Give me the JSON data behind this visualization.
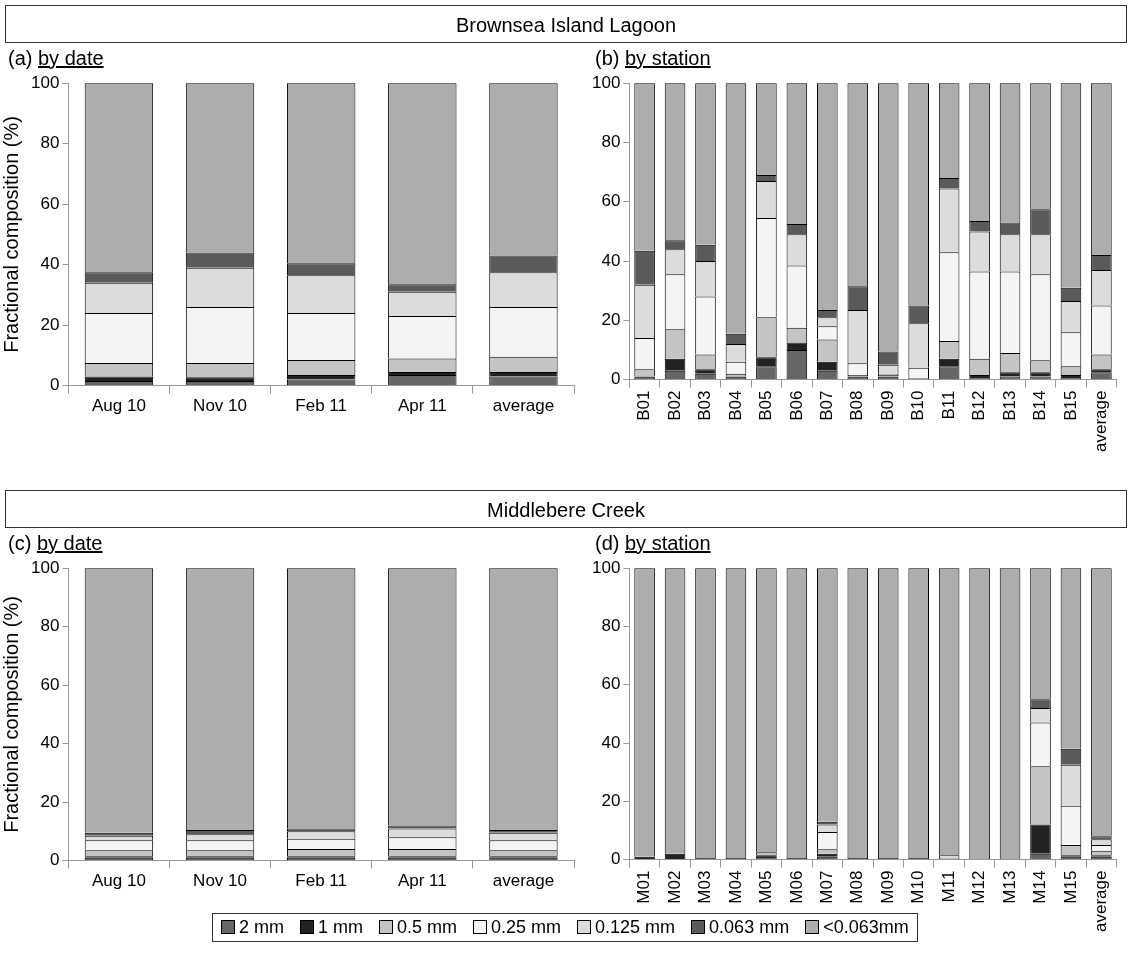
{
  "chart_data": [
    {
      "type": "bar",
      "stacked": true,
      "title": "Brownsea Island Lagoon",
      "subtitle": "(a) by date",
      "ylabel": "Fractional composition (%)",
      "categories": [
        "Aug 10",
        "Nov 10",
        "Feb 11",
        "Apr 11",
        "average"
      ],
      "ylim": [
        0,
        100
      ],
      "yticks": [
        0,
        20,
        40,
        60,
        80,
        100
      ],
      "series": [
        {
          "color": "#666666",
          "values": [
            1.5,
            1.5,
            2,
            3.5,
            3
          ]
        },
        {
          "color": "#222222",
          "values": [
            1.5,
            1.3,
            1.5,
            1,
            1.5
          ]
        },
        {
          "color": "#c4c4c4",
          "values": [
            4.5,
            4.7,
            5,
            4.5,
            5
          ]
        },
        {
          "color": "#f4f4f4",
          "values": [
            16.5,
            18.5,
            15.5,
            14,
            16.5
          ]
        },
        {
          "color": "#dcdcdc",
          "values": [
            10,
            13,
            12.5,
            8,
            11.5
          ]
        },
        {
          "color": "#5a5a5a",
          "values": [
            3.5,
            5,
            4,
            2.5,
            5.5
          ]
        },
        {
          "color": "#adadad",
          "values": [
            62.5,
            56,
            59.5,
            66.5,
            57
          ]
        }
      ]
    },
    {
      "type": "bar",
      "stacked": true,
      "subtitle": "(b) by station",
      "categories": [
        "B01",
        "B02",
        "B03",
        "B04",
        "B05",
        "B06",
        "B07",
        "B08",
        "B09",
        "B10",
        "B11",
        "B12",
        "B13",
        "B14",
        "B15",
        "average"
      ],
      "ylim": [
        0,
        100
      ],
      "yticks": [
        0,
        20,
        40,
        60,
        80,
        100
      ],
      "series": [
        {
          "color": "#666666",
          "values": [
            0.5,
            3,
            2,
            0.5,
            4.5,
            10,
            3,
            0.5,
            0.5,
            0,
            4.5,
            0.5,
            1,
            1,
            0.5,
            2.5
          ]
        },
        {
          "color": "#222222",
          "values": [
            0.5,
            4,
            1.5,
            0.5,
            3,
            2.5,
            3,
            0.5,
            0.5,
            0,
            2.5,
            1,
            1.5,
            1.5,
            1,
            1
          ]
        },
        {
          "color": "#c4c4c4",
          "values": [
            2.5,
            10,
            5,
            1,
            13.5,
            5,
            7.5,
            0.5,
            0.5,
            0.5,
            6,
            5.5,
            6.5,
            4,
            3,
            5
          ]
        },
        {
          "color": "#f4f4f4",
          "values": [
            10.5,
            18.5,
            19.5,
            4,
            33.5,
            21,
            4.5,
            4,
            0.5,
            3.5,
            30,
            29.5,
            27.5,
            29,
            11.5,
            16.5
          ]
        },
        {
          "color": "#dcdcdc",
          "values": [
            18,
            8.5,
            12,
            6,
            12.5,
            10.5,
            3,
            18,
            3,
            15,
            21.5,
            13.5,
            12.5,
            13.5,
            10.5,
            12
          ]
        },
        {
          "color": "#5a5a5a",
          "values": [
            11.5,
            3,
            5.5,
            3.5,
            2,
            3.5,
            2.5,
            8,
            4.5,
            6,
            3.5,
            3.5,
            4,
            8.5,
            4.5,
            5
          ]
        },
        {
          "color": "#adadad",
          "values": [
            56.5,
            53,
            54.5,
            84.5,
            31,
            47.5,
            76.5,
            68.5,
            90.5,
            75,
            32,
            46.5,
            47,
            42.5,
            69,
            58
          ]
        }
      ]
    },
    {
      "type": "bar",
      "stacked": true,
      "title": "Middlebere Creek",
      "subtitle": "(c) by date",
      "ylabel": "Fractional composition (%)",
      "categories": [
        "Aug 10",
        "Nov 10",
        "Feb 11",
        "Apr 11",
        "average"
      ],
      "ylim": [
        0,
        100
      ],
      "yticks": [
        0,
        20,
        40,
        60,
        80,
        100
      ],
      "series": [
        {
          "color": "#666666",
          "values": [
            1,
            1,
            1,
            1,
            1
          ]
        },
        {
          "color": "#222222",
          "values": [
            0.5,
            0.5,
            0.5,
            0.5,
            0.5
          ]
        },
        {
          "color": "#c4c4c4",
          "values": [
            2,
            2,
            2.5,
            2.5,
            2
          ]
        },
        {
          "color": "#f4f4f4",
          "values": [
            3.5,
            3.5,
            3.5,
            4,
            3.5
          ]
        },
        {
          "color": "#dcdcdc",
          "values": [
            1.5,
            2,
            2.5,
            3,
            2.5
          ]
        },
        {
          "color": "#5a5a5a",
          "values": [
            1,
            1.5,
            1,
            1,
            1
          ]
        },
        {
          "color": "#adadad",
          "values": [
            90.5,
            89.5,
            89,
            88,
            89.5
          ]
        }
      ]
    },
    {
      "type": "bar",
      "stacked": true,
      "subtitle": "(d) by station",
      "categories": [
        "M01",
        "M02",
        "M03",
        "M04",
        "M05",
        "M06",
        "M07",
        "M08",
        "M09",
        "M10",
        "M11",
        "M12",
        "M13",
        "M14",
        "M15",
        "average"
      ],
      "ylim": [
        0,
        100
      ],
      "yticks": [
        0,
        20,
        40,
        60,
        80,
        100
      ],
      "legend": "bottom",
      "series": [
        {
          "name": "2 mm",
          "color": "#666666",
          "values": [
            0,
            0,
            0,
            0,
            0.5,
            0,
            1,
            0,
            0,
            0,
            0,
            0,
            0,
            2,
            1,
            1
          ]
        },
        {
          "name": "1 mm",
          "color": "#222222",
          "values": [
            1,
            2,
            0.5,
            0.5,
            1,
            0.5,
            1,
            0.5,
            0.5,
            0.5,
            0,
            0,
            0,
            10,
            0.5,
            0.5
          ]
        },
        {
          "name": "0.5 mm",
          "color": "#c4c4c4",
          "values": [
            0,
            0,
            0,
            0,
            1,
            0,
            1.5,
            0,
            0,
            0,
            0,
            0,
            0,
            20,
            3.5,
            1.5
          ]
        },
        {
          "name": "0.25 mm",
          "color": "#f4f4f4",
          "values": [
            0,
            0,
            0,
            0,
            0,
            0,
            6,
            0,
            0,
            0,
            0.5,
            0,
            0,
            15,
            13.5,
            2
          ]
        },
        {
          "name": "0.125 mm",
          "color": "#dcdcdc",
          "values": [
            0,
            0,
            0,
            0,
            0,
            0,
            2.5,
            0,
            0,
            0,
            1,
            0,
            0,
            5,
            14,
            2
          ]
        },
        {
          "name": "0.063 mm",
          "color": "#5a5a5a",
          "values": [
            0,
            0,
            0,
            0,
            0,
            0,
            1,
            0,
            0,
            0,
            0,
            0,
            0,
            3,
            5.5,
            1
          ]
        },
        {
          "name": "<0.063mm",
          "color": "#adadad",
          "values": [
            99,
            98,
            99.5,
            99.5,
            97.5,
            99.5,
            87,
            99.5,
            99.5,
            99.5,
            98.5,
            100,
            100,
            45,
            62,
            92
          ]
        }
      ]
    }
  ]
}
